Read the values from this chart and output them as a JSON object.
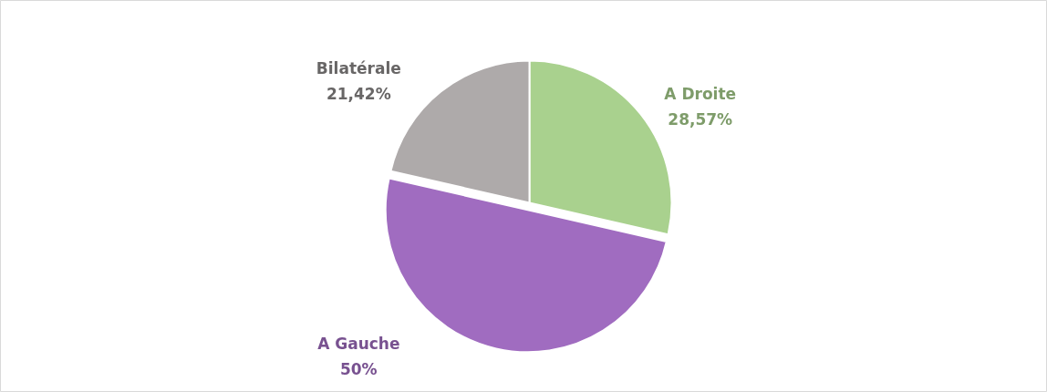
{
  "chart_data": {
    "type": "pie",
    "categories": [
      "A Droite",
      "A Gauche",
      "Bilatérale"
    ],
    "values": [
      28.57,
      50,
      21.42
    ],
    "colors": [
      "#a9d18e",
      "#a06cc0",
      "#aeaaaa"
    ],
    "value_labels": [
      "28,57%",
      "50%",
      "21,42%"
    ]
  }
}
